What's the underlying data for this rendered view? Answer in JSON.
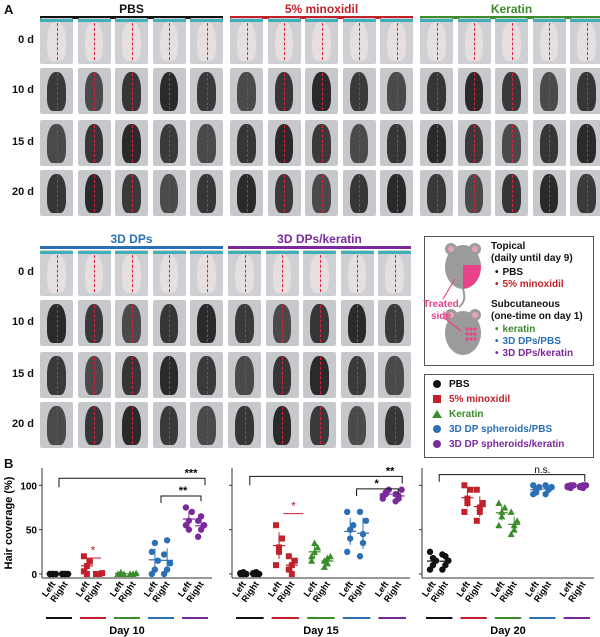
{
  "panel_a": {
    "label": "A",
    "groups_top": [
      {
        "title": "PBS",
        "color": "#111111",
        "title_color": "#111111"
      },
      {
        "title": "5% minoxidil",
        "color": "#c0212b",
        "title_color": "#c0212b"
      },
      {
        "title": "Keratin",
        "color": "#3b8c2a",
        "title_color": "#3b8c2a"
      }
    ],
    "groups_bottom": [
      {
        "title": "3D DPs",
        "color": "#2b6fb5",
        "title_color": "#2b6fb5"
      },
      {
        "title": "3D DPs/keratin",
        "color": "#7b2a9c",
        "title_color": "#7b2a9c"
      }
    ],
    "days": [
      "0 d",
      "10 d",
      "15 d",
      "20 d"
    ]
  },
  "treatment_box": {
    "topical_title": "Topical",
    "topical_sub": "(daily until day 9)",
    "topical_items": [
      {
        "label": "PBS",
        "color": "#111111"
      },
      {
        "label": "5% minoxidil",
        "color": "#c0212b"
      }
    ],
    "treated_side": "Treated side",
    "subcutaneous_title": "Subcutaneous",
    "subcutaneous_sub": "(one-time on day 1)",
    "subcutaneous_items": [
      {
        "label": "keratin",
        "color": "#3b8c2a"
      },
      {
        "label": "3D DPs/PBS",
        "color": "#2b6fb5"
      },
      {
        "label": "3D DPs/keratin",
        "color": "#7b2a9c"
      }
    ]
  },
  "legend": [
    {
      "label": "PBS",
      "color": "#111111",
      "marker": "circle"
    },
    {
      "label": "5% minoxidil",
      "color": "#c0212b",
      "marker": "square"
    },
    {
      "label": "Keratin",
      "color": "#3b8c2a",
      "marker": "triangle"
    },
    {
      "label": "3D DP spheroids/PBS",
      "color": "#2b6fb5",
      "marker": "circle"
    },
    {
      "label": "3D DP spheroids/keratin",
      "color": "#7b2a9c",
      "marker": "circle"
    }
  ],
  "panel_b": {
    "label": "B",
    "ylabel": "Hair coverage (%)",
    "yticks": [
      0,
      50,
      100
    ],
    "ylim": [
      0,
      115
    ]
  },
  "chart_data": [
    {
      "type": "scatter",
      "title": "Day 10",
      "categories": [
        "Left",
        "Right"
      ],
      "ylim": [
        0,
        115
      ],
      "series": [
        {
          "name": "PBS",
          "left": [
            0,
            0,
            0,
            0,
            0
          ],
          "right": [
            0,
            0,
            0,
            0,
            0
          ]
        },
        {
          "name": "5% minoxidil",
          "left": [
            3,
            9,
            14,
            20,
            0
          ],
          "right": [
            0,
            0,
            1,
            0,
            0
          ]
        },
        {
          "name": "Keratin",
          "left": [
            0,
            1,
            0,
            0,
            2
          ],
          "right": [
            0,
            0,
            1,
            0,
            0
          ]
        },
        {
          "name": "3D DP spheroids/PBS",
          "left": [
            0,
            5,
            15,
            25,
            35
          ],
          "right": [
            0,
            5,
            12,
            22,
            38
          ]
        },
        {
          "name": "3D DP spheroids/keratin",
          "left": [
            55,
            60,
            70,
            75,
            50
          ],
          "right": [
            42,
            50,
            55,
            60,
            65
          ]
        }
      ],
      "annotations": [
        "*",
        "***",
        "**"
      ]
    },
    {
      "type": "scatter",
      "title": "Day 15",
      "categories": [
        "Left",
        "Right"
      ],
      "ylim": [
        0,
        115
      ],
      "series": [
        {
          "name": "PBS",
          "left": [
            0,
            2,
            0,
            1,
            0
          ],
          "right": [
            0,
            2,
            0,
            1,
            0
          ]
        },
        {
          "name": "5% minoxidil",
          "left": [
            10,
            25,
            40,
            55,
            30
          ],
          "right": [
            5,
            10,
            15,
            20,
            0
          ]
        },
        {
          "name": "Keratin",
          "left": [
            15,
            25,
            30,
            20,
            35
          ],
          "right": [
            8,
            12,
            20,
            15,
            18
          ]
        },
        {
          "name": "3D DP spheroids/PBS",
          "left": [
            25,
            40,
            55,
            70,
            50
          ],
          "right": [
            20,
            45,
            60,
            70,
            35
          ]
        },
        {
          "name": "3D DP spheroids/keratin",
          "left": [
            85,
            90,
            95,
            88,
            92
          ],
          "right": [
            82,
            88,
            95,
            90,
            85
          ]
        }
      ],
      "annotations": [
        "*",
        "**",
        "*"
      ]
    },
    {
      "type": "scatter",
      "title": "Day 20",
      "categories": [
        "Left",
        "Right"
      ],
      "ylim": [
        0,
        115
      ],
      "series": [
        {
          "name": "PBS",
          "left": [
            5,
            10,
            15,
            25,
            18
          ],
          "right": [
            5,
            10,
            15,
            22,
            20
          ]
        },
        {
          "name": "5% minoxidil",
          "left": [
            70,
            80,
            95,
            100,
            85
          ],
          "right": [
            60,
            70,
            80,
            95,
            75
          ]
        },
        {
          "name": "Keratin",
          "left": [
            55,
            65,
            75,
            80,
            70
          ],
          "right": [
            45,
            55,
            60,
            70,
            50
          ]
        },
        {
          "name": "3D DP spheroids/PBS",
          "left": [
            90,
            95,
            98,
            100,
            92
          ],
          "right": [
            90,
            95,
            98,
            100,
            96
          ]
        },
        {
          "name": "3D DP spheroids/keratin",
          "left": [
            98,
            100,
            100,
            99,
            97
          ],
          "right": [
            98,
            100,
            100,
            99,
            97
          ]
        }
      ],
      "annotations": [
        "n.s."
      ]
    }
  ]
}
